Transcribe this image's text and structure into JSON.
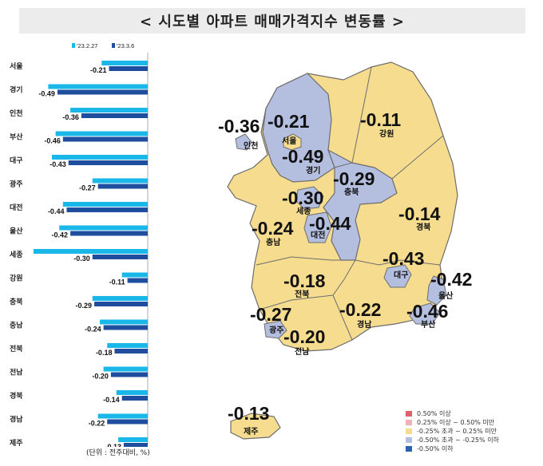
{
  "title": "< 시도별 아파트 매매가격지수 변동률 >",
  "unit_note": "(단위 : 전주대비, %)",
  "colors": {
    "series_prev": "#1ab8e8",
    "series_curr": "#1f4e9e",
    "fill_yellow": "#f5dc8e",
    "fill_lavender": "#b4bedf",
    "border": "#6d6d6d"
  },
  "chart_data": [
    {
      "type": "bar",
      "orientation": "horizontal",
      "categories": [
        "서울",
        "경기",
        "인천",
        "부산",
        "대구",
        "광주",
        "대전",
        "울산",
        "세종",
        "강원",
        "충북",
        "충남",
        "전북",
        "전남",
        "경북",
        "경남",
        "제주"
      ],
      "series": [
        {
          "name": "'23.2.27",
          "values": [
            -0.25,
            -0.54,
            -0.42,
            -0.5,
            -0.52,
            -0.3,
            -0.46,
            -0.48,
            -0.62,
            -0.14,
            -0.3,
            -0.26,
            -0.22,
            -0.24,
            -0.17,
            -0.27,
            -0.16
          ]
        },
        {
          "name": "'23.3.6",
          "values": [
            -0.21,
            -0.49,
            -0.36,
            -0.46,
            -0.43,
            -0.27,
            -0.44,
            -0.42,
            -0.3,
            -0.11,
            -0.29,
            -0.24,
            -0.18,
            -0.2,
            -0.14,
            -0.22,
            -0.13
          ]
        }
      ],
      "data_labels": [
        "-0.21",
        "-0.49",
        "-0.36",
        "-0.46",
        "-0.43",
        "-0.27",
        "-0.44",
        "-0.42",
        "-0.30",
        "-0.11",
        "-0.29",
        "-0.24",
        "-0.18",
        "-0.20",
        "-0.14",
        "-0.22",
        "-0.13"
      ],
      "xlim": [
        -0.7,
        0
      ]
    }
  ],
  "map": {
    "regions": [
      {
        "name": "서울",
        "value": "-0.21"
      },
      {
        "name": "인천",
        "value": "-0.36"
      },
      {
        "name": "경기",
        "value": "-0.49"
      },
      {
        "name": "강원",
        "value": "-0.11"
      },
      {
        "name": "충북",
        "value": "-0.29"
      },
      {
        "name": "세종",
        "value": "-0.30"
      },
      {
        "name": "대전",
        "value": "-0.44"
      },
      {
        "name": "충남",
        "value": "-0.24"
      },
      {
        "name": "경북",
        "value": "-0.14"
      },
      {
        "name": "대구",
        "value": "-0.43"
      },
      {
        "name": "울산",
        "value": "-0.42"
      },
      {
        "name": "전북",
        "value": "-0.18"
      },
      {
        "name": "광주",
        "value": "-0.27"
      },
      {
        "name": "전남",
        "value": "-0.20"
      },
      {
        "name": "경남",
        "value": "-0.22"
      },
      {
        "name": "부산",
        "value": "-0.46"
      },
      {
        "name": "제주",
        "value": "-0.13"
      }
    ]
  },
  "legend": [
    {
      "label": "0.50% 이상",
      "color": "#e06070"
    },
    {
      "label": "0.25% 이상 ~ 0.50% 미만",
      "color": "#f0b0b8"
    },
    {
      "label": "-0.25% 초과 ~ 0.25% 미만",
      "color": "#f5dc8e"
    },
    {
      "label": "-0.50% 초과 ~ -0.25% 이하",
      "color": "#b4bedf"
    },
    {
      "label": "-0.50% 이하",
      "color": "#2e5fb0"
    }
  ]
}
